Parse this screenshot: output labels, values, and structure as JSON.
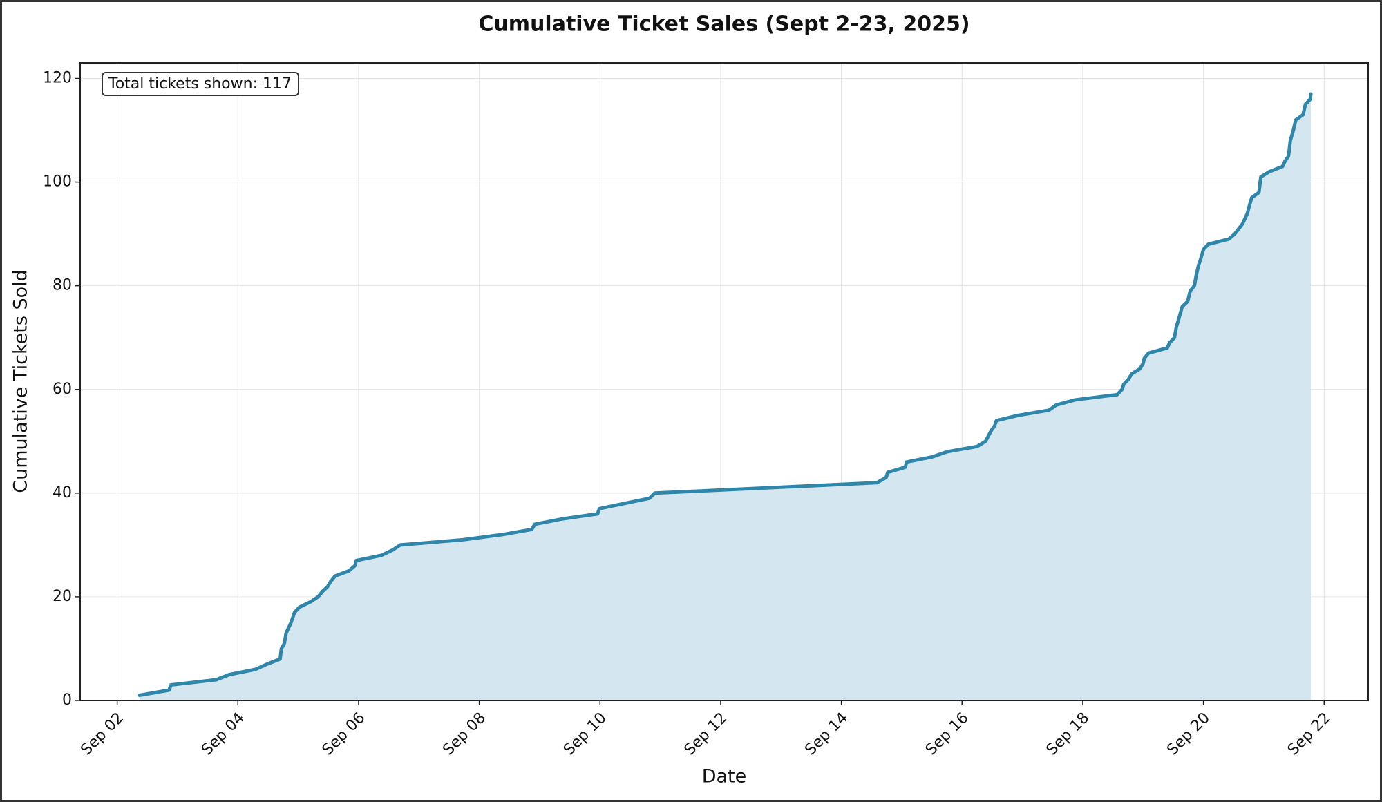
{
  "chart_data": {
    "type": "line",
    "title": "Cumulative Ticket Sales (Sept 2-23, 2025)",
    "x_label": "Date",
    "y_label": "Cumulative Tickets Sold",
    "annotation": "Total tickets shown: 117",
    "color": "#2e86ab",
    "fill_color": "#d4e6ef",
    "grid": true,
    "x": [
      2.37,
      2.86,
      2.89,
      3.64,
      3.86,
      4.29,
      4.48,
      4.7,
      4.72,
      4.77,
      4.8,
      4.88,
      4.94,
      5.02,
      5.2,
      5.33,
      5.4,
      5.49,
      5.54,
      5.61,
      5.84,
      5.94,
      5.96,
      6.38,
      6.56,
      6.69,
      7.73,
      8.38,
      8.87,
      8.92,
      9.36,
      9.96,
      9.99,
      10.82,
      10.91,
      14.59,
      14.74,
      14.77,
      15.06,
      15.08,
      15.51,
      15.76,
      16.25,
      16.39,
      16.48,
      16.54,
      16.57,
      16.93,
      17.44,
      17.56,
      17.88,
      18.57,
      18.65,
      18.68,
      18.76,
      18.81,
      18.95,
      19.0,
      19.02,
      19.09,
      19.4,
      19.44,
      19.52,
      19.55,
      19.6,
      19.65,
      19.74,
      19.78,
      19.85,
      19.88,
      19.92,
      19.95,
      20.0,
      20.08,
      20.42,
      20.52,
      20.65,
      20.73,
      20.75,
      20.8,
      20.92,
      20.95,
      21.09,
      21.31,
      21.35,
      21.41,
      21.44,
      21.49,
      21.53,
      21.65,
      21.69,
      21.77,
      21.78
    ],
    "values": [
      1,
      2,
      3,
      4,
      5,
      6,
      7,
      8,
      10,
      11,
      13,
      15,
      17,
      18,
      19,
      20,
      21,
      22,
      23,
      24,
      25,
      26,
      27,
      28,
      29,
      30,
      31,
      32,
      33,
      34,
      35,
      36,
      37,
      39,
      40,
      42,
      43,
      44,
      45,
      46,
      47,
      48,
      49,
      50,
      52,
      53,
      54,
      55,
      56,
      57,
      58,
      59,
      60,
      61,
      62,
      63,
      64,
      65,
      66,
      67,
      68,
      69,
      70,
      72,
      74,
      76,
      77,
      79,
      80,
      82,
      84,
      85,
      87,
      88,
      89,
      90,
      92,
      94,
      95,
      97,
      98,
      101,
      102,
      103,
      104,
      105,
      108,
      110,
      112,
      113,
      115,
      116,
      117
    ],
    "xlim": [
      1.386,
      22.73
    ],
    "xticks": [
      {
        "value": 2,
        "label": "Sep 02"
      },
      {
        "value": 4,
        "label": "Sep 04"
      },
      {
        "value": 6,
        "label": "Sep 06"
      },
      {
        "value": 8,
        "label": "Sep 08"
      },
      {
        "value": 10,
        "label": "Sep 10"
      },
      {
        "value": 12,
        "label": "Sep 12"
      },
      {
        "value": 14,
        "label": "Sep 14"
      },
      {
        "value": 16,
        "label": "Sep 16"
      },
      {
        "value": 18,
        "label": "Sep 18"
      },
      {
        "value": 20,
        "label": "Sep 20"
      },
      {
        "value": 22,
        "label": "Sep 22"
      }
    ],
    "ylim": [
      0,
      123
    ],
    "yticks": [
      0,
      20,
      40,
      60,
      80,
      100,
      120
    ]
  }
}
